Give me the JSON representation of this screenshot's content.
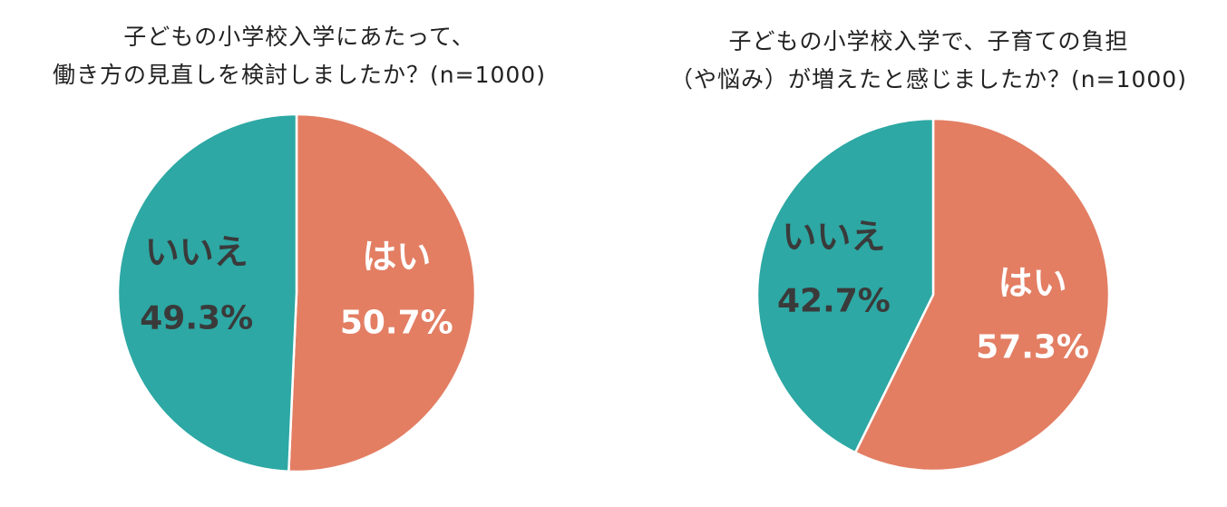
{
  "colors": {
    "yes": "#E37E63",
    "no": "#2DA8A4",
    "dark_text": "#3A3A3A",
    "light_text": "#FFFFFF"
  },
  "chart_data": [
    {
      "type": "pie",
      "title_lines": [
        "子どもの小学校入学にあたって、",
        "働き方の見直しを検討しましたか？(n=1000)"
      ],
      "slices": [
        {
          "label": "はい",
          "value": 50.7,
          "value_label": "50.7%",
          "color": "#E37E63",
          "text_color": "#FFFFFF"
        },
        {
          "label": "いいえ",
          "value": 49.3,
          "value_label": "49.3%",
          "color": "#2DA8A4",
          "text_color": "#3A3A3A"
        }
      ]
    },
    {
      "type": "pie",
      "title_lines": [
        "子どもの小学校入学で、子育ての負担",
        "（や悩み）が増えたと感じましたか？(n=1000)"
      ],
      "slices": [
        {
          "label": "はい",
          "value": 57.3,
          "value_label": "57.3%",
          "color": "#E37E63",
          "text_color": "#FFFFFF"
        },
        {
          "label": "いいえ",
          "value": 42.7,
          "value_label": "42.7%",
          "color": "#2DA8A4",
          "text_color": "#3A3A3A"
        }
      ]
    }
  ]
}
